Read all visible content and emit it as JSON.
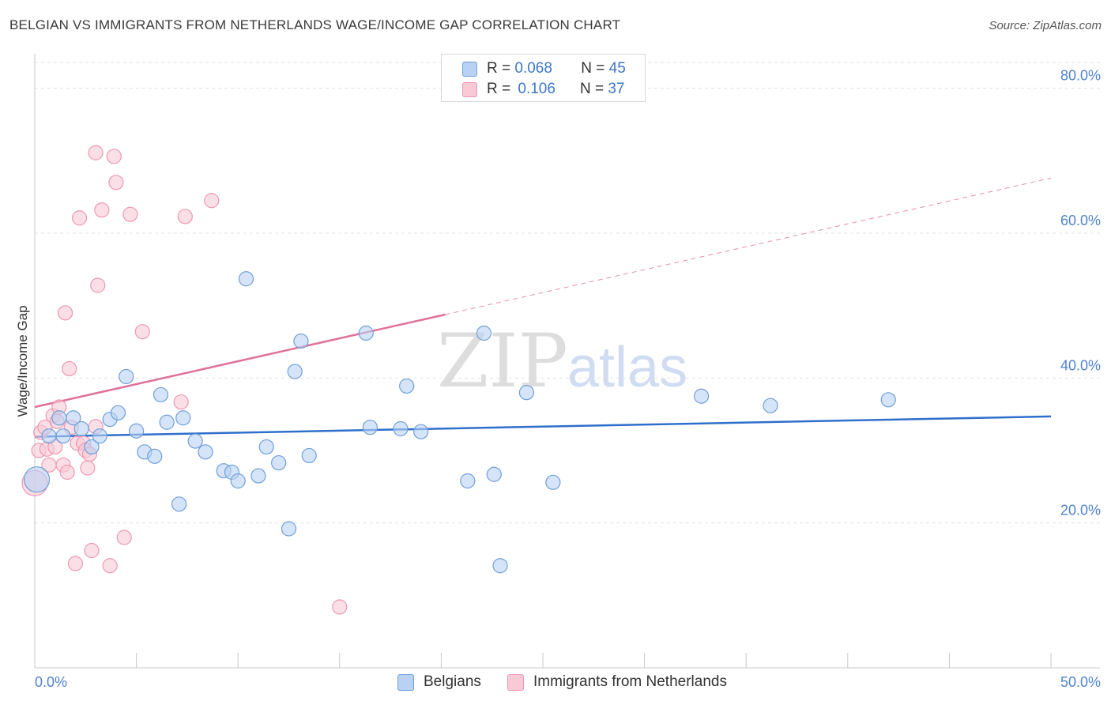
{
  "header": {
    "title": "BELGIAN VS IMMIGRANTS FROM NETHERLANDS WAGE/INCOME GAP CORRELATION CHART",
    "source": "Source: ZipAtlas.com"
  },
  "legend_top": {
    "rows": [
      {
        "r_label": "R =",
        "r_value": "0.068",
        "n_label": "N =",
        "n_value": "45"
      },
      {
        "r_label": "R =",
        "r_value": "0.106",
        "n_label": "N =",
        "n_value": "37"
      }
    ]
  },
  "legend_bottom": {
    "items": [
      {
        "label": "Belgians"
      },
      {
        "label": "Immigrants from Netherlands"
      }
    ]
  },
  "watermark": {
    "zip": "ZIP",
    "atlas": "atlas"
  },
  "colors": {
    "blue_fill": "#b9d2f3",
    "blue_stroke": "#6f9fd8",
    "blue_line": "#2f6fcc",
    "pink_fill": "#f9c9d6",
    "pink_stroke": "#ec98b2",
    "pink_line": "#e0709a",
    "tick_label": "#4f83d0",
    "grid": "#e3e3e3"
  },
  "chart_data": {
    "type": "scatter",
    "title": "BELGIAN VS IMMIGRANTS FROM NETHERLANDS WAGE/INCOME GAP CORRELATION CHART",
    "xlabel": "",
    "ylabel": "Wage/Income Gap",
    "xlim": [
      0,
      50
    ],
    "ylim": [
      0,
      84
    ],
    "x_tick_labels": [
      "0.0%",
      "50.0%"
    ],
    "y_ticks": [
      20,
      40,
      60,
      80
    ],
    "y_tick_labels": [
      "20.0%",
      "40.0%",
      "60.0%",
      "80.0%"
    ],
    "grid": true,
    "legend_position": "bottom",
    "series": [
      {
        "name": "Belgians",
        "color": "#b9d2f3",
        "r": 0.068,
        "n": 45,
        "trend": {
          "x": [
            0,
            50
          ],
          "y": [
            31.9,
            34.7
          ],
          "solid_to": 50
        },
        "points": [
          [
            0.1,
            26.0
          ],
          [
            0.7,
            32.0
          ],
          [
            1.2,
            34.5
          ],
          [
            1.4,
            32.0
          ],
          [
            1.9,
            34.5
          ],
          [
            2.3,
            33.0
          ],
          [
            2.8,
            30.5
          ],
          [
            3.2,
            32.0
          ],
          [
            3.7,
            34.3
          ],
          [
            4.1,
            35.2
          ],
          [
            4.5,
            40.2
          ],
          [
            5.0,
            32.7
          ],
          [
            5.4,
            29.8
          ],
          [
            5.9,
            29.2
          ],
          [
            6.2,
            37.7
          ],
          [
            6.5,
            33.9
          ],
          [
            7.1,
            22.6
          ],
          [
            7.3,
            34.5
          ],
          [
            7.9,
            31.3
          ],
          [
            8.4,
            29.8
          ],
          [
            9.3,
            27.2
          ],
          [
            9.7,
            27.0
          ],
          [
            10.0,
            25.8
          ],
          [
            10.4,
            53.7
          ],
          [
            11.0,
            26.5
          ],
          [
            11.4,
            30.5
          ],
          [
            12.0,
            28.3
          ],
          [
            12.5,
            19.2
          ],
          [
            12.8,
            40.9
          ],
          [
            13.1,
            45.1
          ],
          [
            13.5,
            29.3
          ],
          [
            16.3,
            46.2
          ],
          [
            16.5,
            33.2
          ],
          [
            18.0,
            33.0
          ],
          [
            18.3,
            38.9
          ],
          [
            19.0,
            32.6
          ],
          [
            21.3,
            25.8
          ],
          [
            22.1,
            46.2
          ],
          [
            22.6,
            26.7
          ],
          [
            22.9,
            14.1
          ],
          [
            24.2,
            38.0
          ],
          [
            25.5,
            25.6
          ],
          [
            32.8,
            37.5
          ],
          [
            36.2,
            36.2
          ],
          [
            42.0,
            37.0
          ]
        ]
      },
      {
        "name": "Immigrants from Netherlands",
        "color": "#f9c9d6",
        "r": 0.106,
        "n": 37,
        "trend": {
          "x": [
            0,
            50
          ],
          "y": [
            36.0,
            67.6
          ],
          "solid_to": 20.2
        },
        "points": [
          [
            0.0,
            25.5
          ],
          [
            0.2,
            30.0
          ],
          [
            0.3,
            32.5
          ],
          [
            0.5,
            33.2
          ],
          [
            0.6,
            30.2
          ],
          [
            0.7,
            28.0
          ],
          [
            0.9,
            34.8
          ],
          [
            1.0,
            30.5
          ],
          [
            1.1,
            34.0
          ],
          [
            1.2,
            36.0
          ],
          [
            1.4,
            28.0
          ],
          [
            1.5,
            49.0
          ],
          [
            1.6,
            27.0
          ],
          [
            1.7,
            41.3
          ],
          [
            1.8,
            33.2
          ],
          [
            2.0,
            14.4
          ],
          [
            2.1,
            31.0
          ],
          [
            2.2,
            62.1
          ],
          [
            2.4,
            31.0
          ],
          [
            2.5,
            30.0
          ],
          [
            2.6,
            27.6
          ],
          [
            2.7,
            29.5
          ],
          [
            2.8,
            16.2
          ],
          [
            3.0,
            33.3
          ],
          [
            3.1,
            52.8
          ],
          [
            3.3,
            63.2
          ],
          [
            3.7,
            14.1
          ],
          [
            3.9,
            70.6
          ],
          [
            4.0,
            67.0
          ],
          [
            4.4,
            18.0
          ],
          [
            4.7,
            62.6
          ],
          [
            5.3,
            46.4
          ],
          [
            7.2,
            36.7
          ],
          [
            7.4,
            62.3
          ],
          [
            8.7,
            64.5
          ],
          [
            15.0,
            8.4
          ],
          [
            3.0,
            71.1
          ]
        ]
      }
    ]
  }
}
